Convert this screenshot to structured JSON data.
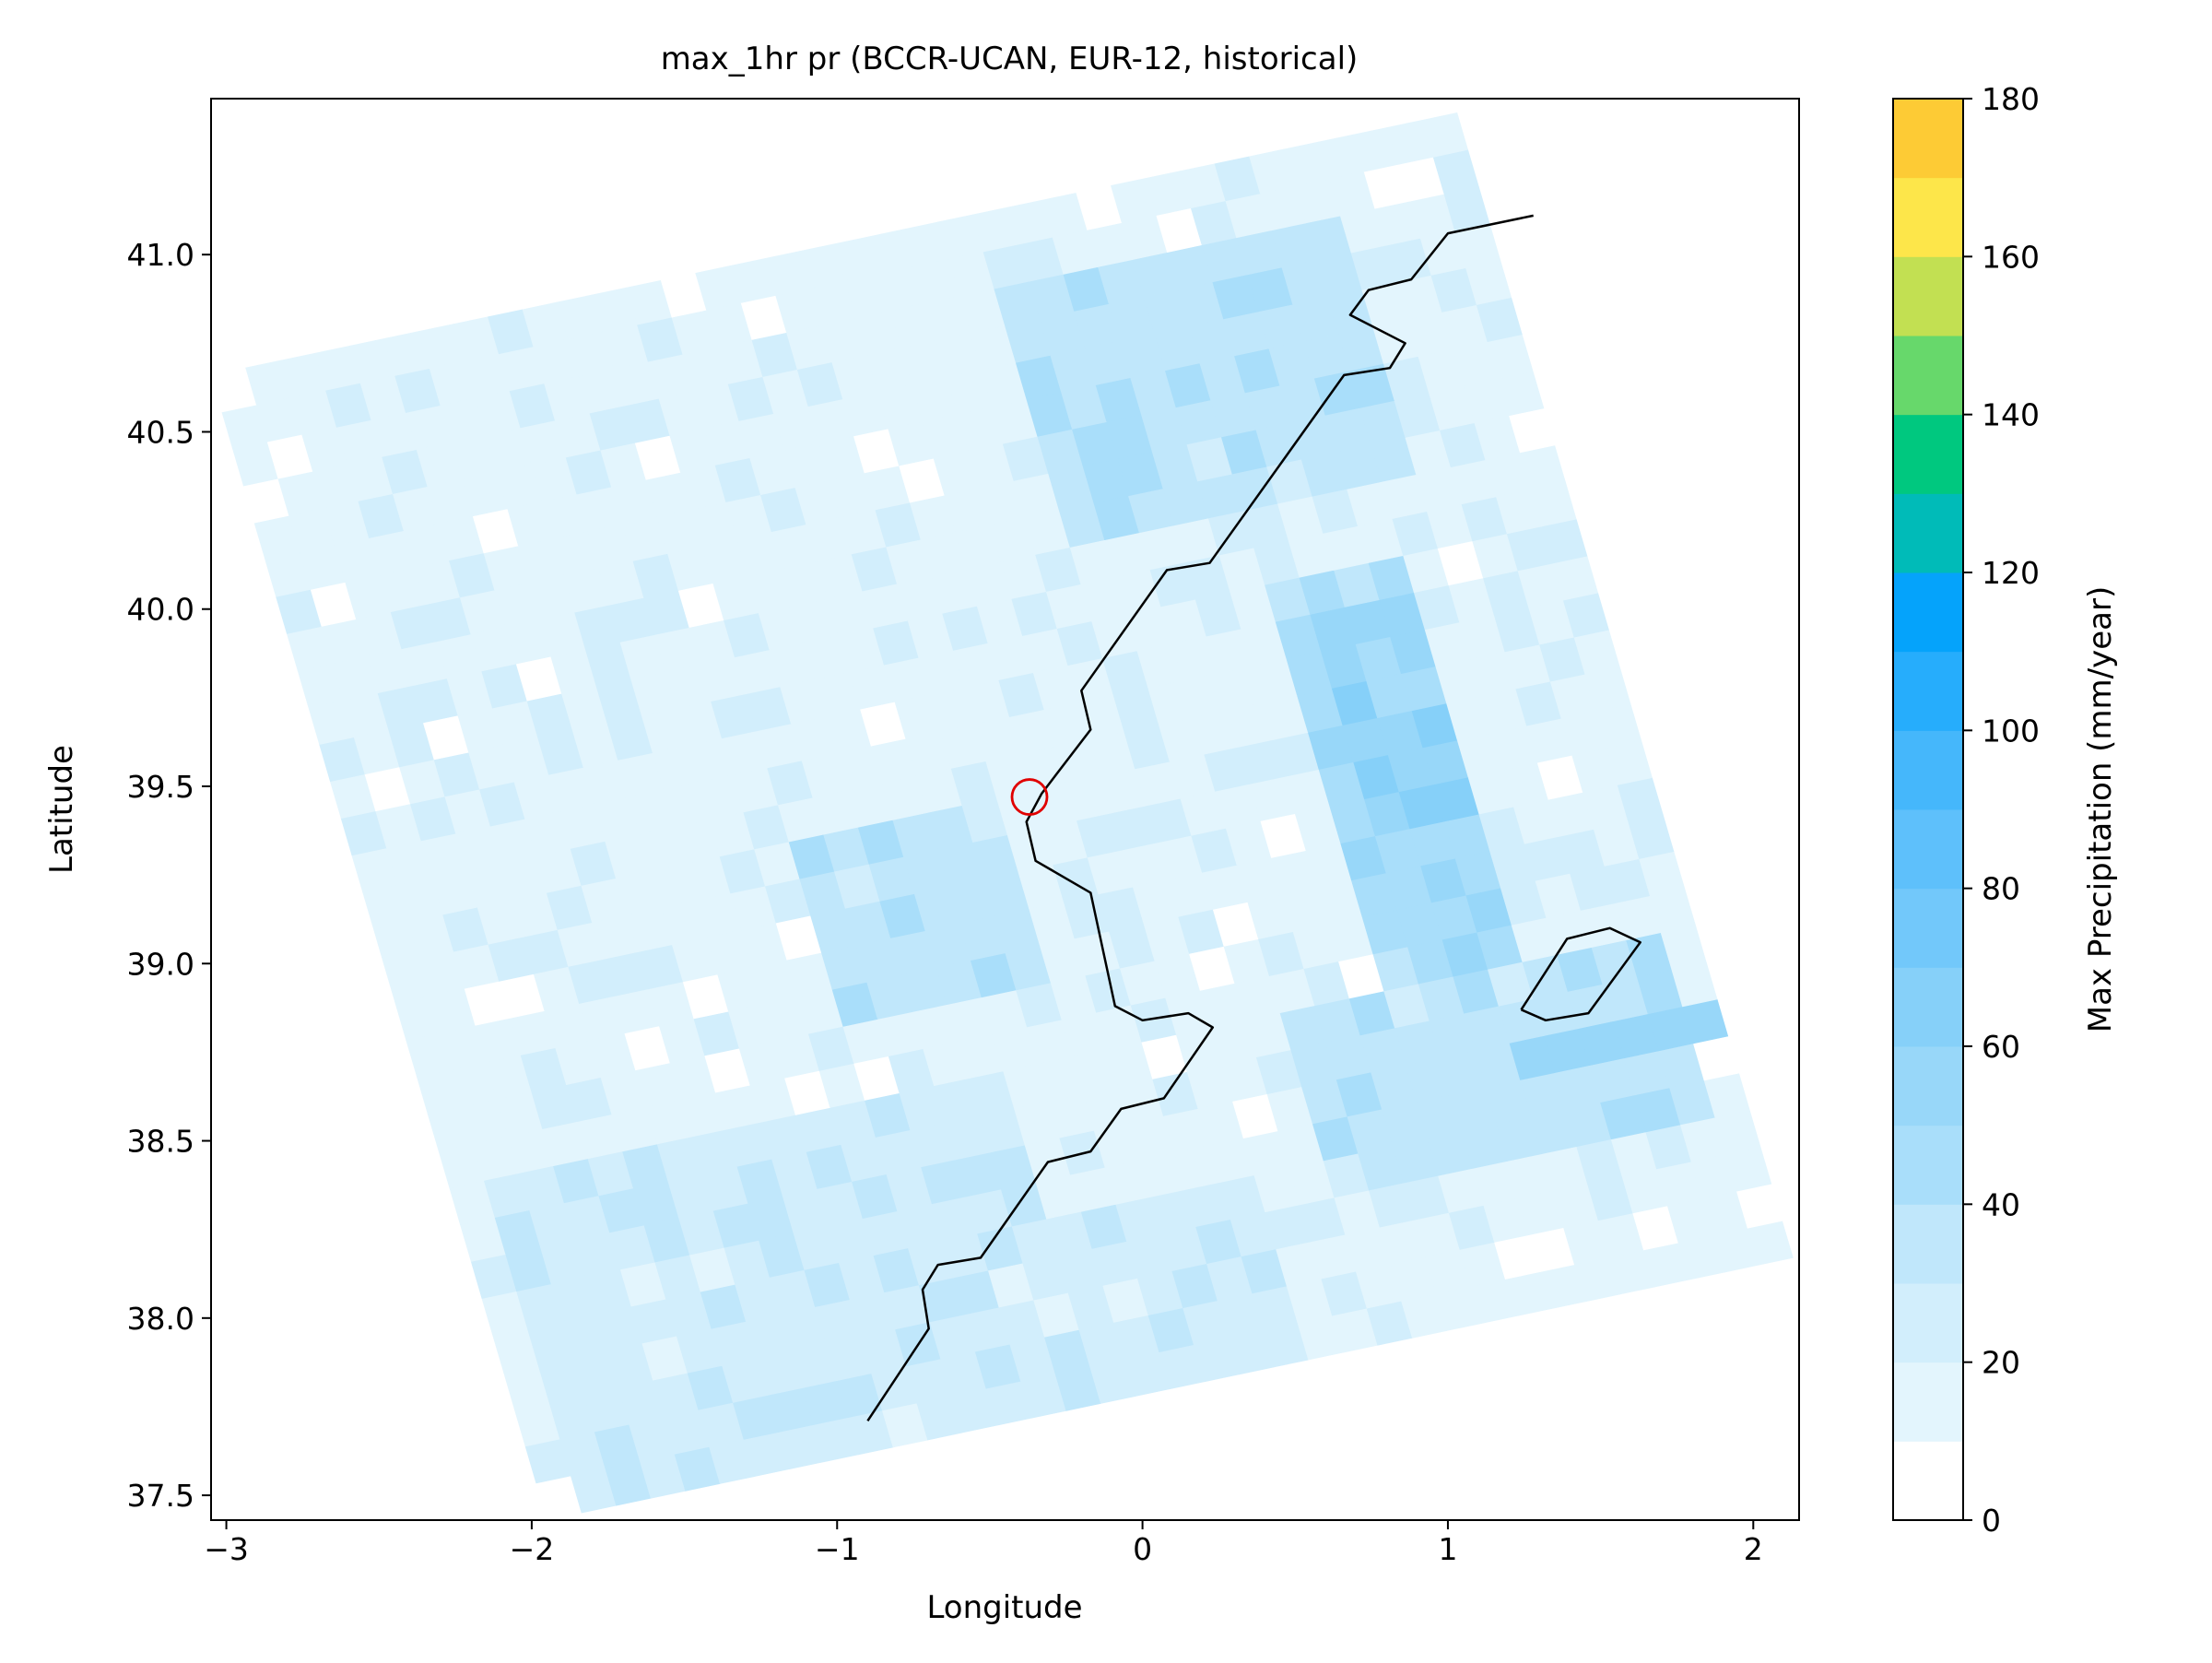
{
  "chart_data": {
    "type": "heatmap",
    "title": "max_1hr pr (BCCR-UCAN, EUR-12, historical)",
    "xlabel": "Longitude",
    "ylabel": "Latitude",
    "xlim": [
      -3.05,
      2.15
    ],
    "ylim": [
      37.43,
      41.44
    ],
    "x_ticks": [
      -3,
      -2,
      -1,
      0,
      1,
      2
    ],
    "x_tick_labels": [
      "−3",
      "−2",
      "−1",
      "0",
      "1",
      "2"
    ],
    "y_ticks": [
      37.5,
      38.0,
      38.5,
      39.0,
      39.5,
      40.0,
      40.5,
      41.0
    ],
    "y_tick_labels": [
      "37.5",
      "38.0",
      "38.5",
      "39.0",
      "39.5",
      "40.0",
      "40.5",
      "41.0"
    ],
    "grid": false,
    "domain_corners_lonlat": [
      [
        -1.95,
        37.43
      ],
      [
        2.13,
        38.17
      ],
      [
        1.28,
        41.43
      ],
      [
        -3.05,
        40.66
      ]
    ],
    "grid_cols": 36,
    "grid_rows": 31,
    "background_value_mm": 14,
    "regions": [
      {
        "label": "northeast band",
        "u": [
          0.62,
          0.9
        ],
        "v": [
          0.72,
          0.95
        ],
        "value": 30
      },
      {
        "label": "east coast",
        "u": [
          0.74,
          0.86
        ],
        "v": [
          0.3,
          0.66
        ],
        "value": 44
      },
      {
        "label": "east coast core",
        "u": [
          0.78,
          0.85
        ],
        "v": [
          0.42,
          0.6
        ],
        "value": 58
      },
      {
        "label": "southeast",
        "u": [
          0.68,
          0.98
        ],
        "v": [
          0.12,
          0.3
        ],
        "value": 32
      },
      {
        "label": "southeast strip",
        "u": [
          0.82,
          1.0
        ],
        "v": [
          0.18,
          0.23
        ],
        "value": 52
      },
      {
        "label": "southwest",
        "u": [
          0.02,
          0.45
        ],
        "v": [
          0.0,
          0.3
        ],
        "value": 22
      },
      {
        "label": "south center",
        "u": [
          0.3,
          0.6
        ],
        "v": [
          0.0,
          0.15
        ],
        "value": 24
      },
      {
        "label": "central",
        "u": [
          0.33,
          0.5
        ],
        "v": [
          0.36,
          0.5
        ],
        "value": 30
      }
    ],
    "coastline": [
      [
        -0.9,
        37.71
      ],
      [
        -0.7,
        37.97
      ],
      [
        -0.72,
        38.08
      ],
      [
        -0.67,
        38.15
      ],
      [
        -0.53,
        38.17
      ],
      [
        -0.31,
        38.44
      ],
      [
        -0.17,
        38.47
      ],
      [
        -0.07,
        38.59
      ],
      [
        0.07,
        38.62
      ],
      [
        0.23,
        38.82
      ],
      [
        0.15,
        38.86
      ],
      [
        0.0,
        38.84
      ],
      [
        -0.09,
        38.88
      ],
      [
        -0.17,
        39.2
      ],
      [
        -0.35,
        39.29
      ],
      [
        -0.38,
        39.4
      ],
      [
        -0.33,
        39.48
      ],
      [
        -0.17,
        39.66
      ],
      [
        -0.2,
        39.77
      ],
      [
        0.08,
        40.11
      ],
      [
        0.22,
        40.13
      ],
      [
        0.66,
        40.66
      ],
      [
        0.81,
        40.68
      ],
      [
        0.86,
        40.75
      ],
      [
        0.68,
        40.83
      ],
      [
        0.74,
        40.9
      ],
      [
        0.88,
        40.93
      ],
      [
        1.0,
        41.06
      ],
      [
        1.28,
        41.11
      ]
    ],
    "island": [
      [
        1.24,
        38.87
      ],
      [
        1.39,
        39.07
      ],
      [
        1.53,
        39.1
      ],
      [
        1.63,
        39.06
      ],
      [
        1.46,
        38.86
      ],
      [
        1.32,
        38.84
      ],
      [
        1.24,
        38.87
      ]
    ],
    "marker": {
      "lon": -0.37,
      "lat": 39.47,
      "shape": "circle",
      "color": "#e00000"
    },
    "colorbar": {
      "label": "Max Precipitation (mm/year)",
      "min": 0,
      "max": 180,
      "step": 10,
      "tick_values": [
        0,
        20,
        40,
        60,
        80,
        100,
        120,
        140,
        160,
        180
      ],
      "tick_labels": [
        "0",
        "20",
        "40",
        "60",
        "80",
        "100",
        "120",
        "140",
        "160",
        "180"
      ],
      "colors": [
        "#ffffff",
        "#e3f5fd",
        "#d2eefc",
        "#c0e7fb",
        "#a9defa",
        "#98d7f9",
        "#86d0f9",
        "#72c8fa",
        "#5ec0fb",
        "#45b7fb",
        "#26adfc",
        "#05a3fb",
        "#00bbb8",
        "#00c87f",
        "#67d86b",
        "#c2e052",
        "#fde64a",
        "#fdcb35",
        "#fda72c",
        "#fd7c25",
        "#d52f25"
      ]
    }
  }
}
